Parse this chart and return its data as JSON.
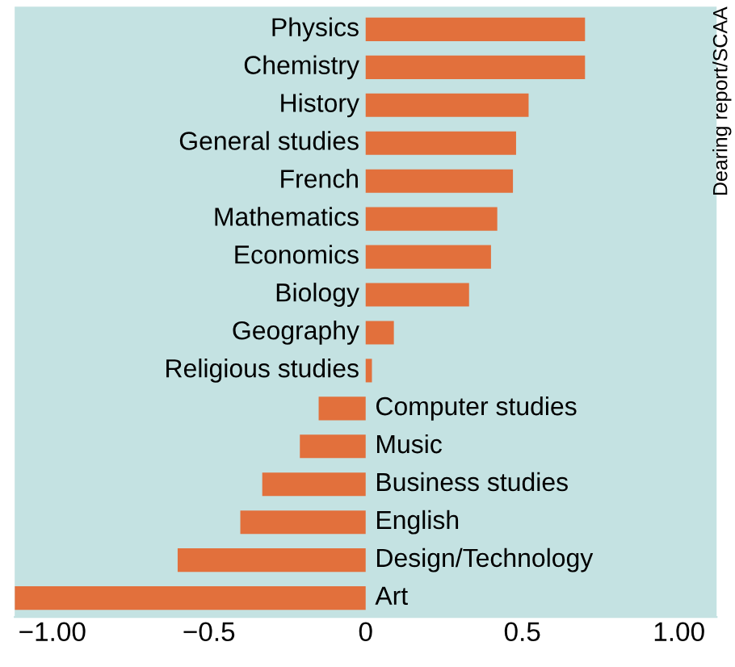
{
  "chart_data": {
    "type": "bar",
    "orientation": "horizontal",
    "categories": [
      "Physics",
      "Chemistry",
      "History",
      "General studies",
      "French",
      "Mathematics",
      "Economics",
      "Biology",
      "Geography",
      "Religious studies",
      "Computer studies",
      "Music",
      "Business studies",
      "English",
      "Design/Technology",
      "Art"
    ],
    "values": [
      0.7,
      0.7,
      0.52,
      0.48,
      0.47,
      0.42,
      0.4,
      0.33,
      0.09,
      0.02,
      -0.15,
      -0.21,
      -0.33,
      -0.4,
      -0.6,
      -1.12
    ],
    "color": "#e2703c",
    "xlim": [
      -1.12,
      1.12
    ],
    "xticks": [
      {
        "value": -1,
        "label": "−1.00"
      },
      {
        "value": -0.5,
        "label": "−0.5"
      },
      0,
      0.5,
      {
        "value": 1,
        "label": "1.00"
      }
    ],
    "grid": false,
    "annotations": [
      "Dearing report/SCAA"
    ]
  }
}
